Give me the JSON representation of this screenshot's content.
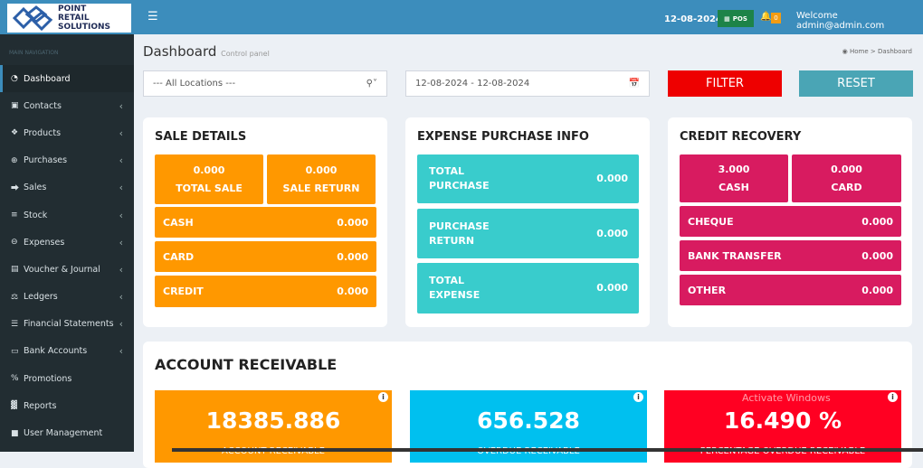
{
  "brand": {
    "logo_text": [
      "POINT",
      "RETAIL",
      "SOLUTIONS"
    ]
  },
  "topbar": {
    "menu_icon": "hamburger-icon",
    "date": "12-08-2024",
    "pos_label": "POS",
    "notif_count": "0",
    "welcome": "Welcome admin@admin.com"
  },
  "sidebar": {
    "header": "MAIN NAVIGATION",
    "items": [
      {
        "label": "Dashboard",
        "icon": "dashboard-icon"
      },
      {
        "label": "Contacts",
        "icon": "contacts-icon"
      },
      {
        "label": "Products",
        "icon": "cubes-icon"
      },
      {
        "label": "Purchases",
        "icon": "plus-circle-icon"
      },
      {
        "label": "Sales",
        "icon": "arrow-circle-icon"
      },
      {
        "label": "Stock",
        "icon": "database-icon"
      },
      {
        "label": "Expenses",
        "icon": "minus-circle-icon"
      },
      {
        "label": "Voucher & Journal",
        "icon": "book-icon"
      },
      {
        "label": "Ledgers",
        "icon": "balance-icon"
      },
      {
        "label": "Financial Statements",
        "icon": "list-icon"
      },
      {
        "label": "Bank Accounts",
        "icon": "money-icon"
      },
      {
        "label": "Promotions",
        "icon": "percent-icon"
      },
      {
        "label": "Reports",
        "icon": "bar-chart-icon"
      },
      {
        "label": "User Management",
        "icon": "user-icon"
      }
    ]
  },
  "page": {
    "title": "Dashboard",
    "subtitle": "Control panel",
    "breadcrumb": [
      "Home",
      "Dashboard"
    ]
  },
  "filters": {
    "location": "--- All Locations ---",
    "date_range": "12-08-2024 - 12-08-2024",
    "filter": "FILTER",
    "reset": "RESET"
  },
  "sale_details": {
    "title": "SALE DETAILS",
    "total_sale": {
      "value": "0.000",
      "label": "TOTAL SALE"
    },
    "sale_return": {
      "value": "0.000",
      "label": "SALE RETURN"
    },
    "rows": [
      {
        "label": "CASH",
        "value": "0.000"
      },
      {
        "label": "CARD",
        "value": "0.000"
      },
      {
        "label": "CREDIT",
        "value": "0.000"
      }
    ]
  },
  "expense": {
    "title": "EXPENSE PURCHASE INFO",
    "rows": [
      {
        "label1": "TOTAL",
        "label2": "PURCHASE",
        "value": "0.000"
      },
      {
        "label1": "PURCHASE",
        "label2": "RETURN",
        "value": "0.000"
      },
      {
        "label1": "TOTAL",
        "label2": "EXPENSE",
        "value": "0.000"
      }
    ]
  },
  "credit": {
    "title": "CREDIT RECOVERY",
    "cash": {
      "value": "3.000",
      "label": "CASH"
    },
    "card": {
      "value": "0.000",
      "label": "CARD"
    },
    "rows": [
      {
        "label": "CHEQUE",
        "value": "0.000"
      },
      {
        "label": "BANK TRANSFER",
        "value": "0.000"
      },
      {
        "label": "OTHER",
        "value": "0.000"
      }
    ]
  },
  "receivable": {
    "title": "ACCOUNT RECEIVABLE",
    "cards": [
      {
        "value": "18385.886",
        "label": "ACCOUNT RECEIVABLE",
        "color": "#ff9800"
      },
      {
        "value": "656.528",
        "label": "OVERDUE RECEIVABLE",
        "color": "#00c0ef"
      },
      {
        "value": "16.490 %",
        "label": "PERCENTAGE OVERDUE RECEIVABLE",
        "color": "#ff0022"
      }
    ]
  },
  "watermark": "Activate Windows"
}
